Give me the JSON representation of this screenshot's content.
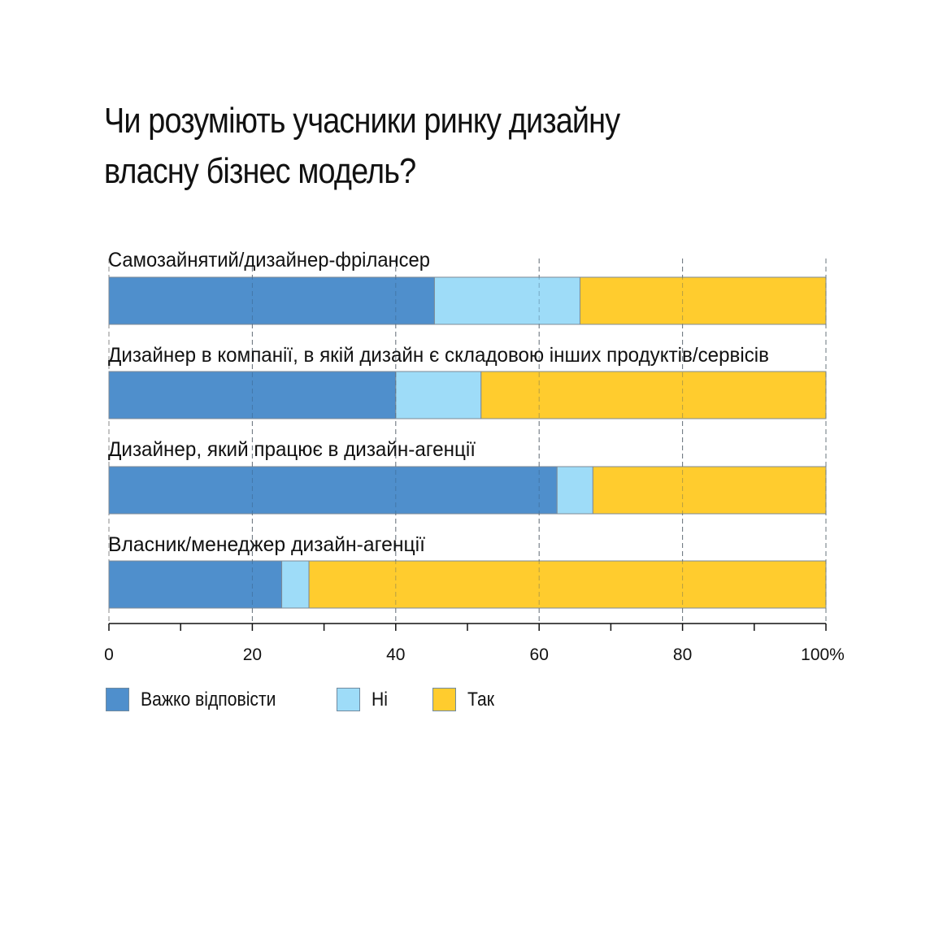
{
  "title_lines": [
    "Чи розуміють учасники ринку дизайну",
    "власну бізнес модель?"
  ],
  "chart_data": {
    "type": "bar",
    "orientation": "horizontal",
    "stacked": true,
    "categories": [
      "Самозайнятий/дизайнер-фрілансер",
      "Дизайнер в компанії, в якій дизайн є складовою інших продуктів/сервісів",
      "Дизайнер, який працює в дизайн-агенції",
      "Власник/менеджер дизайн-агенції"
    ],
    "series": [
      {
        "name": "Важко відповісти",
        "color": "#4f8fcc",
        "values": [
          45.4,
          40.0,
          62.5,
          24.1
        ]
      },
      {
        "name": "Ні",
        "color": "#9edcf8",
        "values": [
          20.3,
          11.9,
          5.0,
          3.8
        ]
      },
      {
        "name": "Так",
        "color": "#ffcc2e",
        "values": [
          34.3,
          48.1,
          32.5,
          72.1
        ]
      }
    ],
    "xlim": [
      0,
      100
    ],
    "x_ticks": [
      0,
      20,
      40,
      60,
      80,
      100
    ],
    "x_tick_labels": [
      "0",
      "20",
      "40",
      "60",
      "80",
      "100%"
    ],
    "grid": "vertical-dashed",
    "legend_position": "bottom-left"
  }
}
